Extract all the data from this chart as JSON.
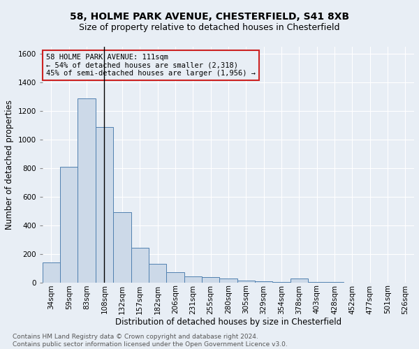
{
  "title1": "58, HOLME PARK AVENUE, CHESTERFIELD, S41 8XB",
  "title2": "Size of property relative to detached houses in Chesterfield",
  "xlabel": "Distribution of detached houses by size in Chesterfield",
  "ylabel": "Number of detached properties",
  "footnote1": "Contains HM Land Registry data © Crown copyright and database right 2024.",
  "footnote2": "Contains public sector information licensed under the Open Government Licence v3.0.",
  "annotation_line1": "58 HOLME PARK AVENUE: 111sqm",
  "annotation_line2": "← 54% of detached houses are smaller (2,318)",
  "annotation_line3": "45% of semi-detached houses are larger (1,956) →",
  "property_size_idx": 3,
  "categories": [
    "34sqm",
    "59sqm",
    "83sqm",
    "108sqm",
    "132sqm",
    "157sqm",
    "182sqm",
    "206sqm",
    "231sqm",
    "255sqm",
    "280sqm",
    "305sqm",
    "329sqm",
    "354sqm",
    "378sqm",
    "403sqm",
    "428sqm",
    "452sqm",
    "477sqm",
    "501sqm",
    "526sqm"
  ],
  "values": [
    140,
    810,
    1290,
    1090,
    490,
    240,
    130,
    70,
    40,
    35,
    25,
    15,
    10,
    5,
    25,
    5,
    5,
    0,
    0,
    0,
    0
  ],
  "bar_color": "#ccd9e8",
  "bar_edge_color": "#5080b0",
  "vline_color": "#000000",
  "ylim": [
    0,
    1650
  ],
  "yticks": [
    0,
    200,
    400,
    600,
    800,
    1000,
    1200,
    1400,
    1600
  ],
  "bg_color": "#e8eef5",
  "annotation_box_edge_color": "#cc2222",
  "grid_color": "#ffffff",
  "title_fontsize": 10,
  "subtitle_fontsize": 9,
  "ylabel_fontsize": 8.5,
  "xlabel_fontsize": 8.5,
  "footnote_fontsize": 6.5,
  "tick_fontsize": 7.5
}
